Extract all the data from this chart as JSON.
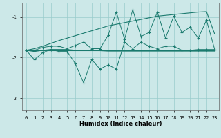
{
  "xlabel": "Humidex (Indice chaleur)",
  "x": [
    0,
    1,
    2,
    3,
    4,
    5,
    6,
    7,
    8,
    9,
    10,
    11,
    12,
    13,
    14,
    15,
    16,
    17,
    18,
    19,
    20,
    21,
    22,
    23
  ],
  "line_main": [
    -1.82,
    -1.85,
    -1.82,
    -1.8,
    -1.8,
    -1.8,
    -1.82,
    -1.82,
    -1.82,
    -1.83,
    -1.84,
    -1.84,
    -1.84,
    -1.84,
    -1.84,
    -1.84,
    -1.84,
    -1.84,
    -1.84,
    -1.84,
    -1.84,
    -1.84,
    -1.84,
    -1.84
  ],
  "line_max": [
    -1.82,
    -1.82,
    -1.75,
    -1.72,
    -1.72,
    -1.78,
    -1.7,
    -1.62,
    -1.78,
    -1.78,
    -1.45,
    -0.88,
    -1.55,
    -0.82,
    -1.48,
    -1.38,
    -0.88,
    -1.52,
    -0.98,
    -1.38,
    -1.25,
    -1.52,
    -1.08,
    -1.8
  ],
  "line_min": [
    -1.82,
    -2.05,
    -1.88,
    -1.8,
    -1.85,
    -1.85,
    -2.15,
    -2.62,
    -2.05,
    -2.28,
    -2.18,
    -2.28,
    -1.62,
    -1.78,
    -1.62,
    -1.72,
    -1.78,
    -1.72,
    -1.72,
    -1.82,
    -1.82,
    -1.8,
    -1.8,
    -1.8
  ],
  "line_trend_top": [
    -1.82,
    -1.78,
    -1.72,
    -1.65,
    -1.58,
    -1.52,
    -1.46,
    -1.4,
    -1.34,
    -1.28,
    -1.22,
    -1.18,
    -1.14,
    -1.1,
    -1.06,
    -1.02,
    -0.98,
    -0.96,
    -0.94,
    -0.92,
    -0.9,
    -0.88,
    -0.87,
    -1.42
  ],
  "line_trend_bottom": [
    -1.82,
    -1.82,
    -1.82,
    -1.82,
    -1.82,
    -1.82,
    -1.82,
    -1.82,
    -1.82,
    -1.82,
    -1.82,
    -1.82,
    -1.82,
    -1.82,
    -1.82,
    -1.82,
    -1.82,
    -1.82,
    -1.82,
    -1.82,
    -1.82,
    -1.82,
    -1.82,
    -1.82
  ],
  "bg_color": "#cce8e8",
  "grid_color": "#99cccc",
  "line_color": "#1a7a6e",
  "ylim": [
    -3.3,
    -0.65
  ],
  "yticks": [
    -3.0,
    -2.0,
    -1.0
  ],
  "xlim": [
    -0.5,
    23.5
  ]
}
